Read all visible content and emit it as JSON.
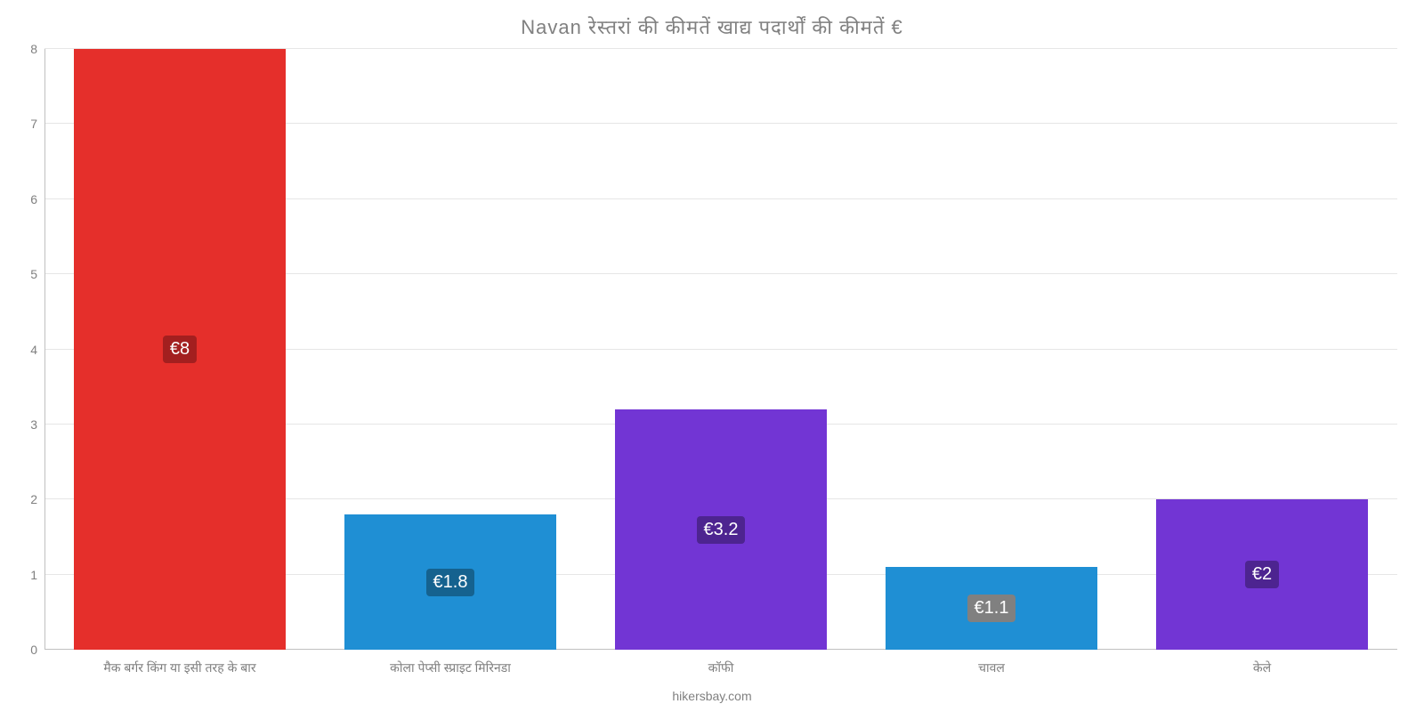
{
  "chart": {
    "type": "bar",
    "title": "Navan रेस्तरां की कीमतें खाद्य पदार्थों की कीमतें €",
    "title_color": "#808080",
    "title_fontsize": 22,
    "background_color": "#ffffff",
    "grid_color": "#e6e6e6",
    "axis_color": "#c0c0c0",
    "label_color": "#808080",
    "label_fontsize": 14,
    "ylim": [
      0,
      8
    ],
    "ytick_step": 1,
    "yticks": [
      0,
      1,
      2,
      3,
      4,
      5,
      6,
      7,
      8
    ],
    "bar_width": 0.78,
    "categories": [
      "मैक बर्गर किंग या इसी तरह के बार",
      "कोला पेप्सी स्प्राइट मिरिनडा",
      "कॉफी",
      "चावल",
      "केले"
    ],
    "values": [
      8,
      1.8,
      3.2,
      1.1,
      2
    ],
    "value_labels": [
      "€8",
      "€1.8",
      "€3.2",
      "€1.1",
      "€2"
    ],
    "bar_colors": [
      "#e52f2b",
      "#1f8fd4",
      "#7235d4",
      "#1f8fd4",
      "#7235d4"
    ],
    "label_bg_colors": [
      "#a31f1f",
      "#15628f",
      "#4d2490",
      "#808080",
      "#4d2490"
    ],
    "footer": "hikersbay.com"
  }
}
